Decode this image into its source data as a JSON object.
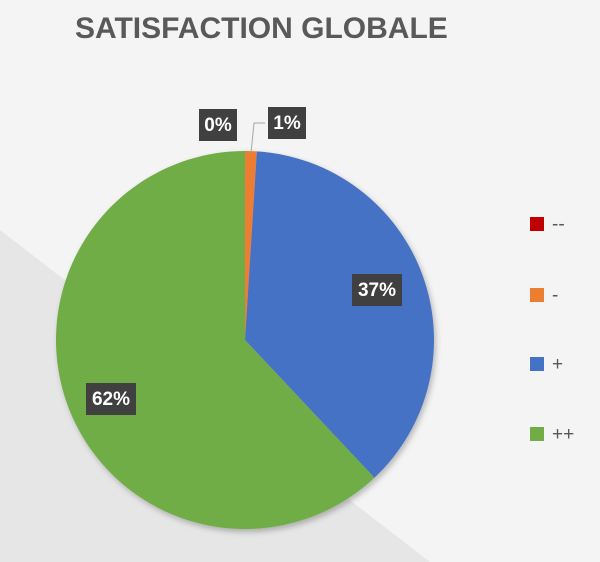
{
  "chart_data": {
    "type": "pie",
    "title": "SATISFACTION GLOBALE",
    "categories": [
      "--",
      "-",
      "+",
      "++"
    ],
    "values": [
      0,
      1,
      37,
      62
    ],
    "value_labels": [
      "0%",
      "1%",
      "37%",
      "62%"
    ],
    "colors": [
      "#c00000",
      "#ed7d31",
      "#4472c4",
      "#70ad47"
    ],
    "legend": "right"
  }
}
